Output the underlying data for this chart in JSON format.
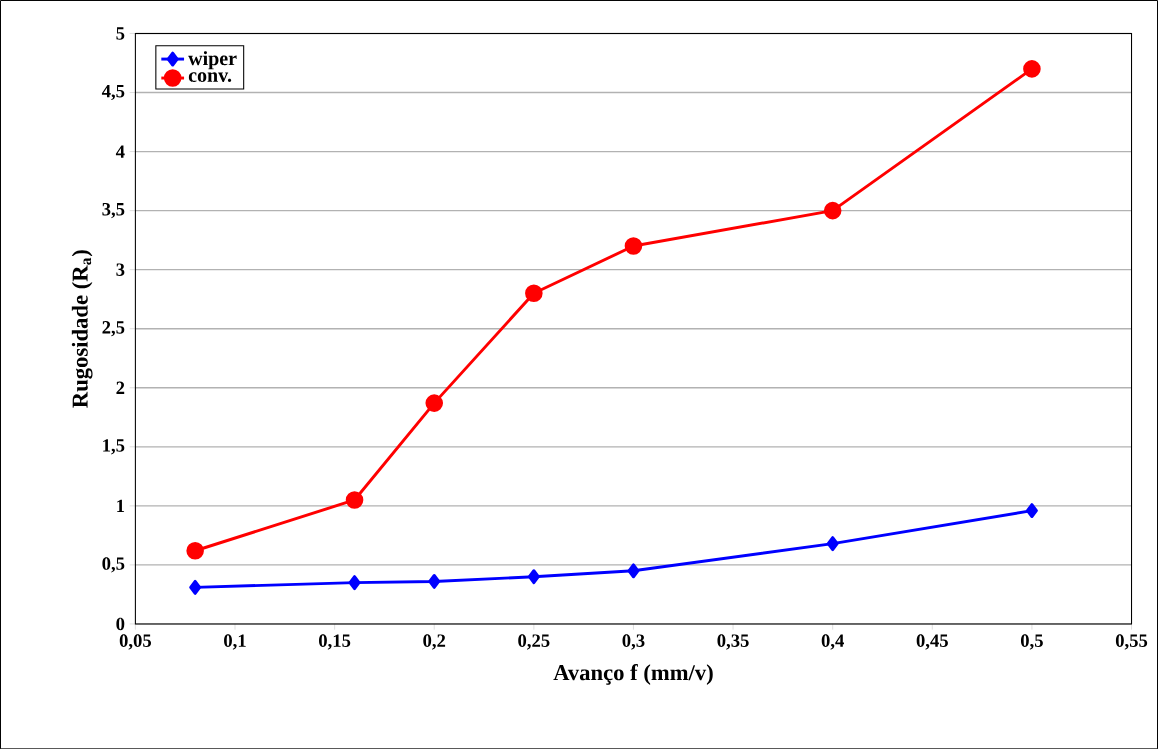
{
  "chart_data": {
    "type": "line",
    "xlabel": "Avanço f (mm/v)",
    "ylabel": "Rugosidade (R$_{a}$)",
    "x": [
      0.08,
      0.16,
      0.2,
      0.25,
      0.3,
      0.4,
      0.5
    ],
    "series": [
      {
        "name": "wiper",
        "color": "#0000ff",
        "marker": "diamond",
        "values": [
          0.31,
          0.35,
          0.36,
          0.4,
          0.45,
          0.68,
          0.96
        ]
      },
      {
        "name": "conv.",
        "color": "#ff0000",
        "marker": "circle",
        "values": [
          0.62,
          1.05,
          1.87,
          2.8,
          3.2,
          3.5,
          4.7
        ]
      }
    ],
    "xlim": [
      0.05,
      0.55
    ],
    "xticks": [
      {
        "value": 0.05,
        "label": "0,05"
      },
      {
        "value": 0.1,
        "label": "0,1"
      },
      {
        "value": 0.15,
        "label": "0,15"
      },
      {
        "value": 0.2,
        "label": "0,2"
      },
      {
        "value": 0.25,
        "label": "0,25"
      },
      {
        "value": 0.3,
        "label": "0,3"
      },
      {
        "value": 0.35,
        "label": "0,35"
      },
      {
        "value": 0.4,
        "label": "0,4"
      },
      {
        "value": 0.45,
        "label": "0,45"
      },
      {
        "value": 0.5,
        "label": "0,5"
      },
      {
        "value": 0.55,
        "label": "0,55"
      }
    ],
    "ylim": [
      0,
      5
    ],
    "yticks": [
      0,
      {
        "value": 0.5,
        "label": "0,5"
      },
      1,
      {
        "value": 1.5,
        "label": "1,5"
      },
      2,
      {
        "value": 2.5,
        "label": "2,5"
      },
      3,
      {
        "value": 3.5,
        "label": "3,5"
      },
      4,
      {
        "value": 4.5,
        "label": "4,5"
      },
      5
    ],
    "grid": "y",
    "legend": "top left",
    "line_style": "solid"
  }
}
